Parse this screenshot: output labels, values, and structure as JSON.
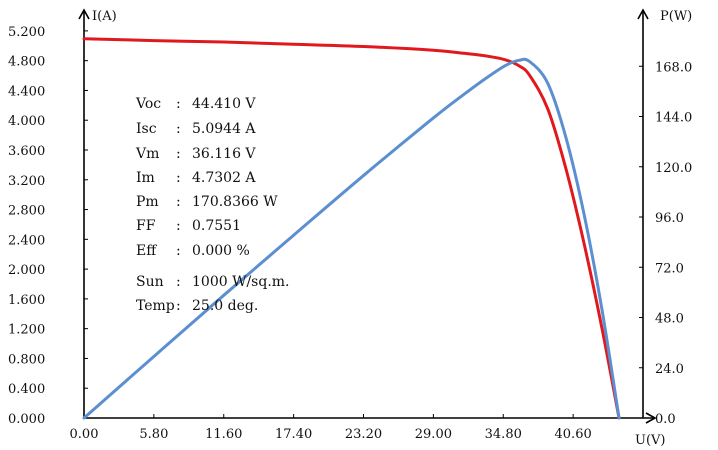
{
  "chart_data": {
    "type": "line",
    "title": "",
    "xlabel": "U(V)",
    "ylabel_left": "I(A)",
    "ylabel_right": "P(W)",
    "xlim": [
      0,
      46.4
    ],
    "ylim_left": [
      0,
      5.4
    ],
    "ylim_right": [
      0,
      192
    ],
    "x_ticks": [
      "0.00",
      "5.80",
      "11.60",
      "17.40",
      "23.20",
      "29.00",
      "34.80",
      "40.60"
    ],
    "y_left_ticks": [
      "0.000",
      "0.400",
      "0.800",
      "1.200",
      "1.600",
      "2.000",
      "2.400",
      "2.800",
      "3.200",
      "3.600",
      "4.000",
      "4.400",
      "4.800",
      "5.200"
    ],
    "y_right_ticks": [
      "0.0",
      "24.0",
      "48.0",
      "72.0",
      "96.0",
      "120.0",
      "144.0",
      "168.0"
    ],
    "grid": false,
    "series": [
      {
        "color": "#e0191e",
        "axis": "left",
        "x": [
          0,
          5.8,
          11.6,
          17.4,
          23.2,
          29.0,
          31.5,
          33.5,
          35.0,
          36.116,
          37.0,
          38.5,
          40.0,
          41.5,
          43.0,
          44.41
        ],
        "y": [
          5.0944,
          5.07,
          5.05,
          5.02,
          4.99,
          4.94,
          4.9,
          4.86,
          4.81,
          4.7302,
          4.6,
          4.15,
          3.35,
          2.35,
          1.2,
          0
        ]
      },
      {
        "color": "#5b8fd0",
        "axis": "right",
        "x": [
          0,
          5.8,
          11.6,
          17.4,
          23.2,
          29.0,
          31.5,
          33.5,
          35.0,
          36.116,
          37.0,
          38.5,
          40.0,
          41.5,
          43.0,
          44.41
        ],
        "y": [
          0,
          29.4,
          58.6,
          87.3,
          115.8,
          143.3,
          154.4,
          162.8,
          168.4,
          170.8366,
          170.2,
          159.8,
          134.0,
          97.5,
          51.6,
          0
        ]
      }
    ],
    "annotations": [
      {
        "label": "Voc",
        "sep": ":",
        "value": "44.410 V"
      },
      {
        "label": "Isc",
        "sep": ":",
        "value": "5.0944 A"
      },
      {
        "label": "Vm",
        "sep": ":",
        "value": "36.116 V"
      },
      {
        "label": "Im",
        "sep": ":",
        "value": "4.7302 A"
      },
      {
        "label": "Pm",
        "sep": ":",
        "value": "170.8366 W"
      },
      {
        "label": "FF",
        "sep": ":",
        "value": "0.7551"
      },
      {
        "label": "Eff",
        "sep": ":",
        "value": "0.000 %"
      },
      {
        "label": "Sun",
        "sep": ":",
        "value": "1000 W/sq.m."
      },
      {
        "label": "Temp",
        "sep": ":",
        "value": "25.0 deg."
      }
    ]
  }
}
